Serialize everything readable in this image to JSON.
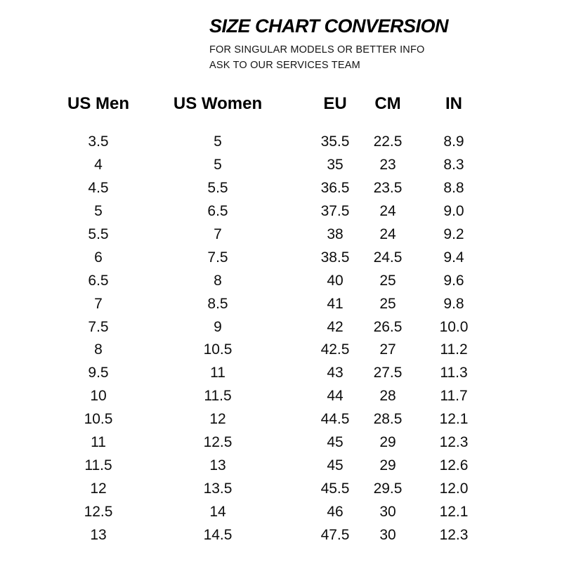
{
  "page": {
    "title": "SIZE CHART CONVERSION",
    "subtitle_line1": "FOR SINGULAR MODELS OR BETTER INFO",
    "subtitle_line2": "ASK TO OUR SERVICES TEAM"
  },
  "table": {
    "headers": [
      "US Men",
      "US Women",
      "EU",
      "CM",
      "IN"
    ],
    "rows": [
      [
        "3.5",
        "5",
        "35.5",
        "22.5",
        "8.9"
      ],
      [
        "4",
        "5",
        "35",
        "23",
        "8.3"
      ],
      [
        "4.5",
        "5.5",
        "36.5",
        "23.5",
        "8.8"
      ],
      [
        "5",
        "6.5",
        "37.5",
        "24",
        "9.0"
      ],
      [
        "5.5",
        "7",
        "38",
        "24",
        "9.2"
      ],
      [
        "6",
        "7.5",
        "38.5",
        "24.5",
        "9.4"
      ],
      [
        "6.5",
        "8",
        "40",
        "25",
        "9.6"
      ],
      [
        "7",
        "8.5",
        "41",
        "25",
        "9.8"
      ],
      [
        "7.5",
        "9",
        "42",
        "26.5",
        "10.0"
      ],
      [
        "8",
        "10.5",
        "42.5",
        "27",
        "11.2"
      ],
      [
        "9.5",
        "11",
        "43",
        "27.5",
        "11.3"
      ],
      [
        "10",
        "11.5",
        "44",
        "28",
        "11.7"
      ],
      [
        "10.5",
        "12",
        "44.5",
        "28.5",
        "12.1"
      ],
      [
        "11",
        "12.5",
        "45",
        "29",
        "12.3"
      ],
      [
        "11.5",
        "13",
        "45",
        "29",
        "12.6"
      ],
      [
        "12",
        "13.5",
        "45.5",
        "29.5",
        "12.0"
      ],
      [
        "12.5",
        "14",
        "46",
        "30",
        "12.1"
      ],
      [
        "13",
        "14.5",
        "47.5",
        "30",
        "12.3"
      ]
    ]
  },
  "colors": {
    "text": "#0d0d0d",
    "background": "#ffffff"
  }
}
